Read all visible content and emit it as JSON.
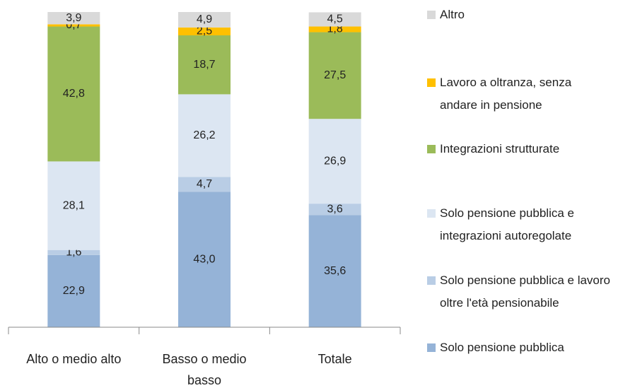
{
  "chart_data": {
    "type": "stacked_bar",
    "categories": [
      "Alto o medio alto",
      "Basso o medio basso",
      "Totale"
    ],
    "series": [
      {
        "name": "Solo pensione pubblica",
        "color": "#95b3d7",
        "values": [
          22.9,
          43.0,
          35.6
        ],
        "value_labels": [
          "22,9",
          "43,0",
          "35,6"
        ]
      },
      {
        "name": "Solo pensione pubblica e lavoro oltre l'età pensionabile",
        "color": "#b9cde5",
        "values": [
          1.6,
          4.7,
          3.6
        ],
        "value_labels": [
          "1,6",
          "4,7",
          "3,6"
        ]
      },
      {
        "name": "Solo pensione pubblica e integrazioni autoregolate",
        "color": "#dce6f2",
        "values": [
          28.1,
          26.2,
          26.9
        ],
        "value_labels": [
          "28,1",
          "26,2",
          "26,9"
        ]
      },
      {
        "name": "Integrazioni strutturate",
        "color": "#9bbb59",
        "values": [
          42.8,
          18.7,
          27.5
        ],
        "value_labels": [
          "42,8",
          "18,7",
          "27,5"
        ]
      },
      {
        "name": "Lavoro a oltranza, senza andare in pensione",
        "color": "#ffc000",
        "values": [
          0.7,
          2.5,
          1.8
        ],
        "value_labels": [
          "0,7",
          "2,5",
          "1,8"
        ]
      },
      {
        "name": "Altro",
        "color": "#d9d9d9",
        "values": [
          3.9,
          4.9,
          4.5
        ],
        "value_labels": [
          "3,9",
          "4,9",
          "4,5"
        ]
      }
    ]
  }
}
